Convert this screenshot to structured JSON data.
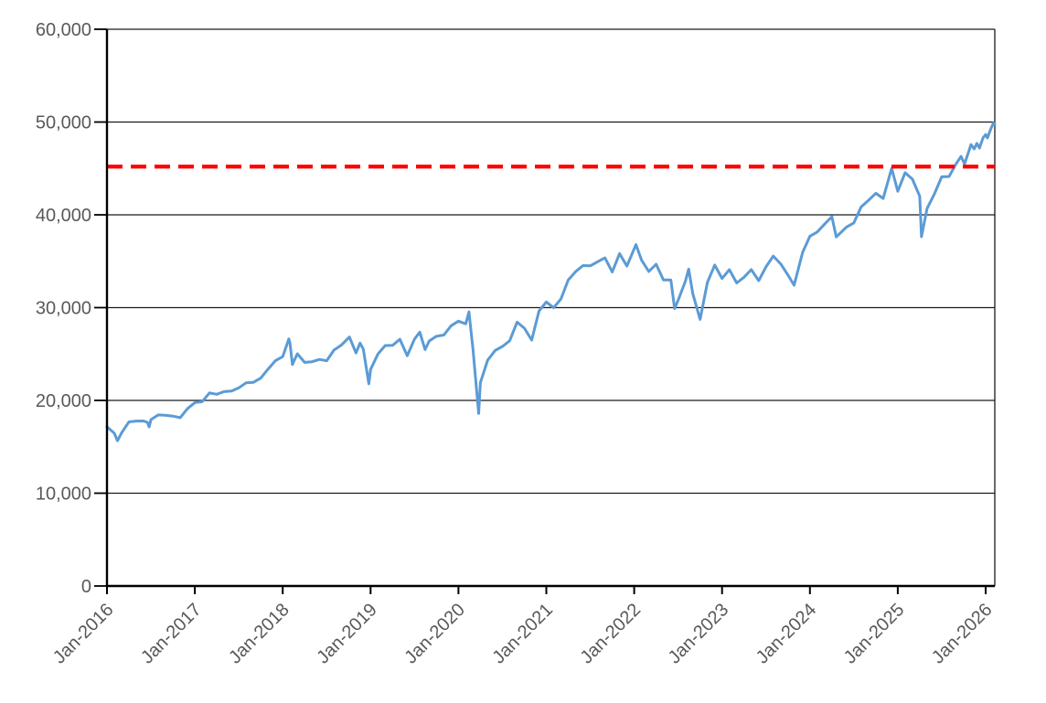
{
  "chart_data": {
    "type": "line",
    "title": "",
    "xlabel": "",
    "ylabel": "",
    "x_axis": {
      "ticks": [
        {
          "label": "Jan-2016",
          "t": 0
        },
        {
          "label": "Jan-2017",
          "t": 1
        },
        {
          "label": "Jan-2018",
          "t": 2
        },
        {
          "label": "Jan-2019",
          "t": 3
        },
        {
          "label": "Jan-2020",
          "t": 4
        },
        {
          "label": "Jan-2021",
          "t": 5
        },
        {
          "label": "Jan-2022",
          "t": 6
        },
        {
          "label": "Jan-2023",
          "t": 7
        },
        {
          "label": "Jan-2024",
          "t": 8
        },
        {
          "label": "Jan-2025",
          "t": 9
        },
        {
          "label": "Jan-2026",
          "t": 10
        }
      ],
      "t_min": 0,
      "t_max": 10.104,
      "label_rotation_deg": -45
    },
    "y_axis": {
      "min": 0,
      "max": 60000,
      "grid_interval": 10000,
      "ticks": [
        {
          "label": "0",
          "value": 0
        },
        {
          "label": "10,000",
          "value": 10000
        },
        {
          "label": "20,000",
          "value": 20000
        },
        {
          "label": "30,000",
          "value": 30000
        },
        {
          "label": "40,000",
          "value": 40000
        },
        {
          "label": "50,000",
          "value": 50000
        },
        {
          "label": "60,000",
          "value": 60000
        }
      ]
    },
    "grid": true,
    "legend": "none",
    "reference_line": {
      "value": 45200,
      "style": "dashed",
      "color": "#FF0000"
    },
    "series": [
      {
        "name": "series1",
        "color": "#5B9BD5",
        "points": [
          [
            0.0,
            17149
          ],
          [
            0.083,
            16466
          ],
          [
            0.12,
            15660
          ],
          [
            0.167,
            16517
          ],
          [
            0.25,
            17685
          ],
          [
            0.333,
            17774
          ],
          [
            0.417,
            17787
          ],
          [
            0.46,
            17640
          ],
          [
            0.48,
            17140
          ],
          [
            0.5,
            17930
          ],
          [
            0.583,
            18432
          ],
          [
            0.667,
            18401
          ],
          [
            0.75,
            18308
          ],
          [
            0.833,
            18142
          ],
          [
            0.917,
            19124
          ],
          [
            1.0,
            19763
          ],
          [
            1.083,
            19864
          ],
          [
            1.167,
            20812
          ],
          [
            1.25,
            20663
          ],
          [
            1.333,
            20941
          ],
          [
            1.417,
            21009
          ],
          [
            1.5,
            21350
          ],
          [
            1.583,
            21891
          ],
          [
            1.667,
            21948
          ],
          [
            1.75,
            22405
          ],
          [
            1.833,
            23377
          ],
          [
            1.917,
            24272
          ],
          [
            2.0,
            24719
          ],
          [
            2.07,
            26617
          ],
          [
            2.083,
            26149
          ],
          [
            2.11,
            23860
          ],
          [
            2.167,
            25029
          ],
          [
            2.25,
            24103
          ],
          [
            2.333,
            24163
          ],
          [
            2.417,
            24416
          ],
          [
            2.5,
            24271
          ],
          [
            2.583,
            25415
          ],
          [
            2.667,
            25965
          ],
          [
            2.76,
            26828
          ],
          [
            2.833,
            25116
          ],
          [
            2.88,
            26180
          ],
          [
            2.917,
            25538
          ],
          [
            2.98,
            21792
          ],
          [
            3.0,
            23327
          ],
          [
            3.083,
            25000
          ],
          [
            3.167,
            25916
          ],
          [
            3.25,
            25929
          ],
          [
            3.333,
            26593
          ],
          [
            3.417,
            24815
          ],
          [
            3.5,
            26600
          ],
          [
            3.56,
            27359
          ],
          [
            3.62,
            25479
          ],
          [
            3.667,
            26403
          ],
          [
            3.75,
            26917
          ],
          [
            3.833,
            27046
          ],
          [
            3.917,
            28051
          ],
          [
            4.0,
            28538
          ],
          [
            4.083,
            28256
          ],
          [
            4.12,
            29551
          ],
          [
            4.167,
            25409
          ],
          [
            4.23,
            18592
          ],
          [
            4.25,
            21917
          ],
          [
            4.333,
            24346
          ],
          [
            4.417,
            25383
          ],
          [
            4.5,
            25813
          ],
          [
            4.583,
            26428
          ],
          [
            4.667,
            28430
          ],
          [
            4.75,
            27782
          ],
          [
            4.833,
            26502
          ],
          [
            4.917,
            29639
          ],
          [
            5.0,
            30606
          ],
          [
            5.083,
            29983
          ],
          [
            5.167,
            30932
          ],
          [
            5.25,
            32982
          ],
          [
            5.333,
            33875
          ],
          [
            5.417,
            34529
          ],
          [
            5.5,
            34503
          ],
          [
            5.583,
            34935
          ],
          [
            5.667,
            35361
          ],
          [
            5.75,
            33844
          ],
          [
            5.833,
            35820
          ],
          [
            5.917,
            34484
          ],
          [
            6.0,
            36338
          ],
          [
            6.02,
            36800
          ],
          [
            6.083,
            35132
          ],
          [
            6.167,
            33893
          ],
          [
            6.25,
            34678
          ],
          [
            6.333,
            32977
          ],
          [
            6.417,
            32990
          ],
          [
            6.46,
            29889
          ],
          [
            6.5,
            30775
          ],
          [
            6.583,
            32845
          ],
          [
            6.62,
            34152
          ],
          [
            6.667,
            31510
          ],
          [
            6.75,
            28726
          ],
          [
            6.833,
            32733
          ],
          [
            6.917,
            34590
          ],
          [
            7.0,
            33147
          ],
          [
            7.083,
            34086
          ],
          [
            7.167,
            32657
          ],
          [
            7.25,
            33274
          ],
          [
            7.333,
            34098
          ],
          [
            7.417,
            32908
          ],
          [
            7.5,
            34408
          ],
          [
            7.583,
            35560
          ],
          [
            7.667,
            34722
          ],
          [
            7.75,
            33508
          ],
          [
            7.82,
            32418
          ],
          [
            7.917,
            35951
          ],
          [
            8.0,
            37690
          ],
          [
            8.083,
            38150
          ],
          [
            8.167,
            38996
          ],
          [
            8.25,
            39807
          ],
          [
            8.3,
            37611
          ],
          [
            8.417,
            38686
          ],
          [
            8.5,
            39119
          ],
          [
            8.583,
            40843
          ],
          [
            8.667,
            41563
          ],
          [
            8.75,
            42330
          ],
          [
            8.833,
            41763
          ],
          [
            8.93,
            45014
          ],
          [
            9.0,
            42544
          ],
          [
            9.083,
            44545
          ],
          [
            9.167,
            43841
          ],
          [
            9.25,
            42002
          ],
          [
            9.27,
            37646
          ],
          [
            9.333,
            40669
          ],
          [
            9.417,
            42270
          ],
          [
            9.5,
            44095
          ],
          [
            9.583,
            44131
          ],
          [
            9.667,
            45545
          ],
          [
            9.72,
            46300
          ],
          [
            9.76,
            45480
          ],
          [
            9.833,
            47563
          ],
          [
            9.87,
            47100
          ],
          [
            9.9,
            47700
          ],
          [
            9.93,
            47200
          ],
          [
            9.97,
            48300
          ],
          [
            10.0,
            48650
          ],
          [
            10.02,
            48300
          ],
          [
            10.06,
            49300
          ],
          [
            10.09,
            49900
          ],
          [
            10.104,
            49750
          ]
        ]
      }
    ]
  },
  "colors": {
    "series_blue": "#5B9BD5",
    "reference_red": "#FF0000",
    "axis_text": "#595959",
    "grid_line": "#1a1a1a",
    "axis_line": "#000000",
    "background": "#ffffff"
  }
}
